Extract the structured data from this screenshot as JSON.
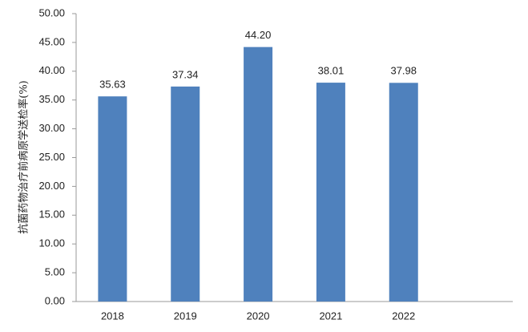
{
  "chart_data": {
    "type": "bar",
    "y_label": "抗菌药物治疗前病原学送检率(%)",
    "categories": [
      "2018",
      "2019",
      "2020",
      "2021",
      "2022",
      null
    ],
    "values": [
      35.63,
      37.34,
      44.2,
      38.01,
      37.98,
      null
    ],
    "value_labels": [
      "35.63",
      "37.34",
      "44.20",
      "38.01",
      "37.98",
      null
    ],
    "color": "#4f81bd",
    "ylim": [
      0,
      50
    ],
    "yticks": [
      {
        "value": 0,
        "label": "0.00"
      },
      {
        "value": 5,
        "label": "5.00"
      },
      {
        "value": 10,
        "label": "10.00"
      },
      {
        "value": 15,
        "label": "15.00"
      },
      {
        "value": 20,
        "label": "20.00"
      },
      {
        "value": 25,
        "label": "25.00"
      },
      {
        "value": 30,
        "label": "30.00"
      },
      {
        "value": 35,
        "label": "35.00"
      },
      {
        "value": 40,
        "label": "40.00"
      },
      {
        "value": 45,
        "label": "45.00"
      },
      {
        "value": 50,
        "label": "50.00"
      }
    ],
    "grid": false
  }
}
